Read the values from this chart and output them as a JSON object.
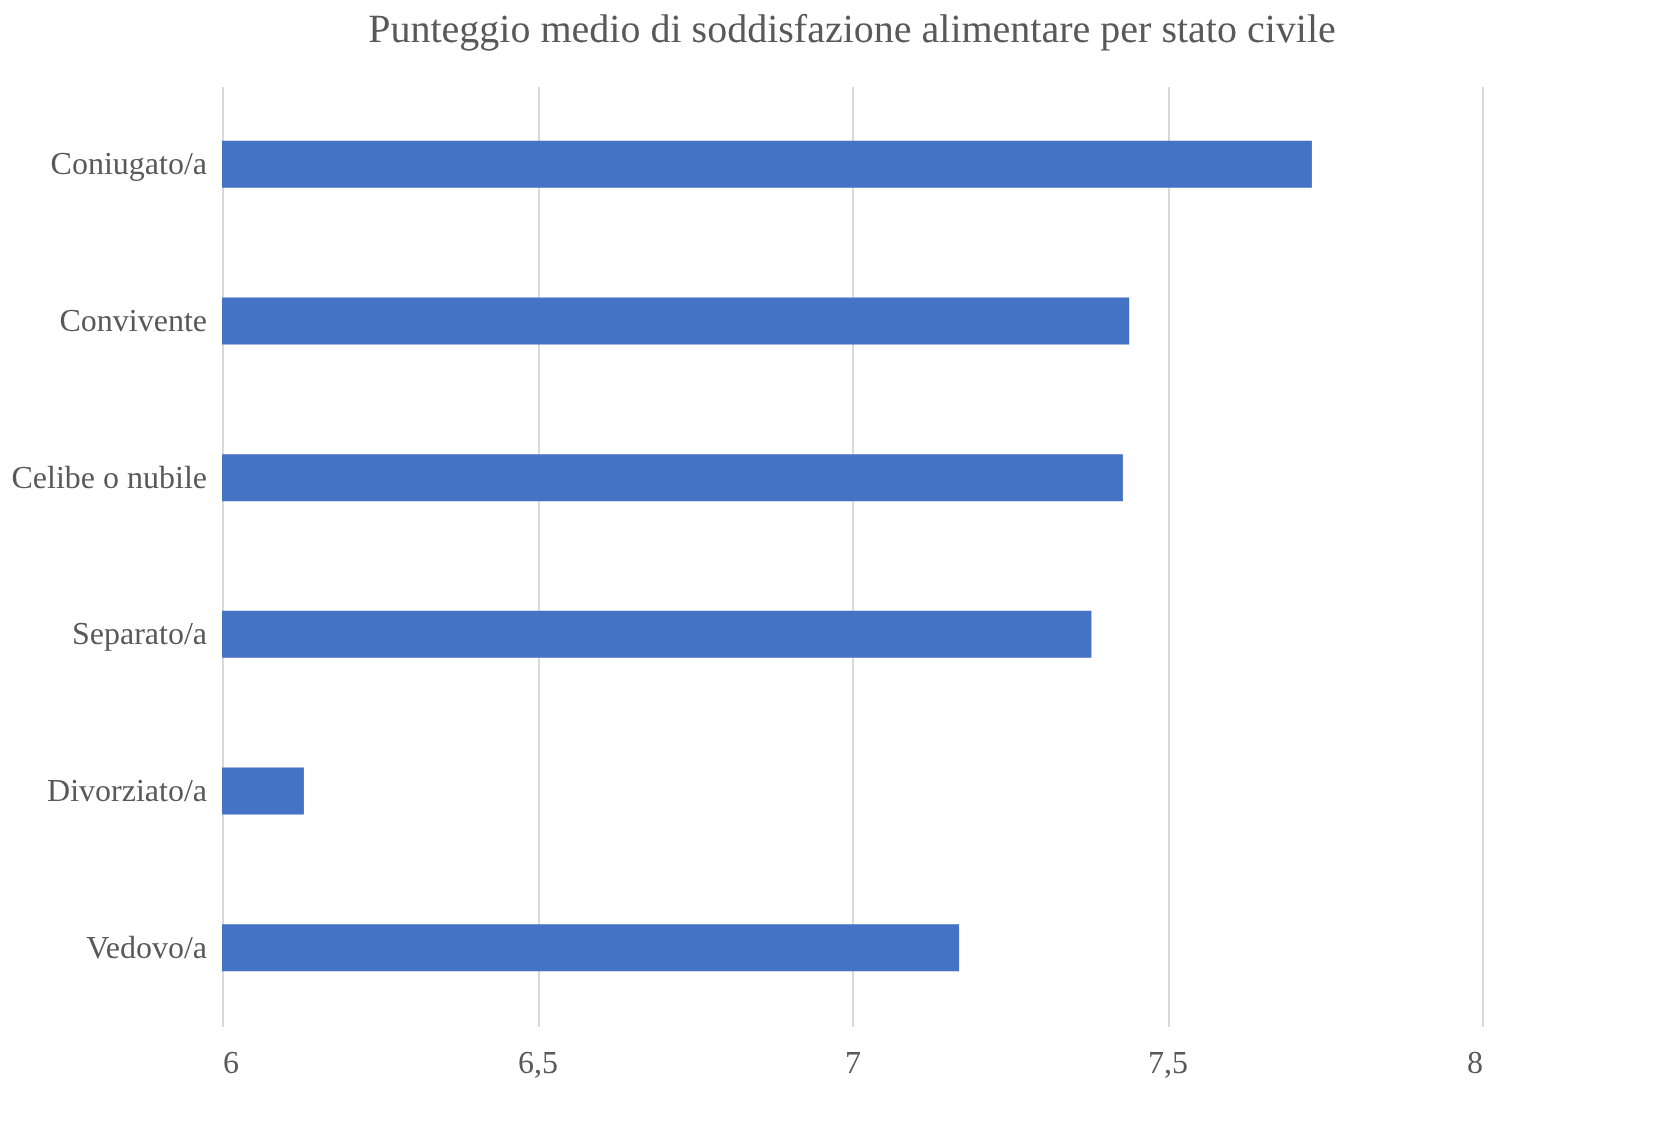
{
  "chart_data": {
    "type": "bar",
    "orientation": "horizontal",
    "title": "Punteggio medio di soddisfazione alimentare per stato civile",
    "categories": [
      "Coniugato/a",
      "Convivente",
      "Celibe o nubile",
      "Separato/a",
      "Divorziato/a",
      "Vedovo/a"
    ],
    "values": [
      7.73,
      7.44,
      7.43,
      7.38,
      6.13,
      7.17
    ],
    "color": "#4472c4",
    "xlim": [
      6,
      8
    ],
    "xticks": [
      6,
      {
        "value": 6.5,
        "label": "6,5"
      },
      7,
      {
        "value": 7.5,
        "label": "7,5"
      },
      8
    ],
    "grid": "x"
  }
}
